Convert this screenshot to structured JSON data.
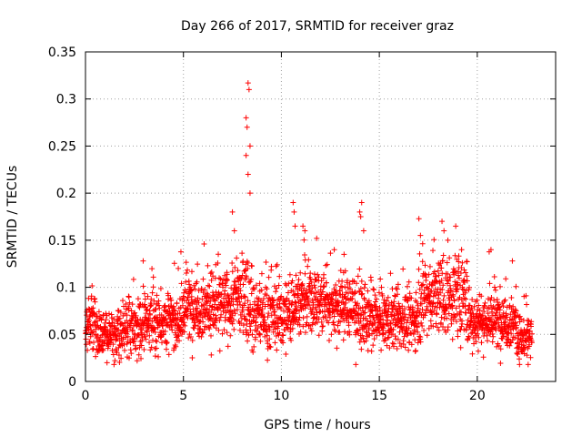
{
  "chart_data": {
    "type": "scatter",
    "title": "Day 266 of 2017, SRMTID for receiver graz",
    "xlabel": "GPS time / hours",
    "ylabel": "SRMTID / TECUs",
    "xlim": [
      0,
      24
    ],
    "ylim": [
      0,
      0.35
    ],
    "x_ticks": [
      0,
      5,
      10,
      15,
      20
    ],
    "x_tick_labels": [
      "0",
      "5",
      "10",
      "15",
      "20"
    ],
    "y_ticks": [
      0,
      0.05,
      0.1,
      0.15,
      0.2,
      0.25,
      0.3,
      0.35
    ],
    "y_tick_labels": [
      "0",
      "0.05",
      "0.1",
      "0.15",
      "0.2",
      "0.25",
      "0.3",
      "0.35"
    ],
    "grid": true,
    "marker": "+",
    "color": "#ff0000",
    "series": [
      {
        "name": "SRMTID",
        "note": "~2800 samples, one every ~30 s from 0 to 22.8 h; values in TECUs",
        "baseline_segments": [
          {
            "x": [
              0.0,
              0.5
            ],
            "mean": 0.065,
            "spread": 0.025
          },
          {
            "x": [
              0.5,
              1.5
            ],
            "mean": 0.05,
            "spread": 0.02
          },
          {
            "x": [
              1.5,
              3.0
            ],
            "mean": 0.055,
            "spread": 0.025
          },
          {
            "x": [
              3.0,
              5.0
            ],
            "mean": 0.065,
            "spread": 0.025
          },
          {
            "x": [
              5.0,
              7.5
            ],
            "mean": 0.08,
            "spread": 0.03
          },
          {
            "x": [
              7.5,
              8.5
            ],
            "mean": 0.09,
            "spread": 0.035
          },
          {
            "x": [
              8.5,
              10.5
            ],
            "mean": 0.07,
            "spread": 0.03
          },
          {
            "x": [
              10.5,
              12.5
            ],
            "mean": 0.085,
            "spread": 0.03
          },
          {
            "x": [
              12.5,
              14.0
            ],
            "mean": 0.08,
            "spread": 0.03
          },
          {
            "x": [
              14.0,
              17.0
            ],
            "mean": 0.065,
            "spread": 0.025
          },
          {
            "x": [
              17.0,
              19.5
            ],
            "mean": 0.09,
            "spread": 0.035
          },
          {
            "x": [
              19.5,
              22.0
            ],
            "mean": 0.065,
            "spread": 0.025
          },
          {
            "x": [
              22.0,
              22.8
            ],
            "mean": 0.045,
            "spread": 0.02
          }
        ],
        "peaks": [
          {
            "x": 8.3,
            "y": 0.317
          },
          {
            "x": 8.35,
            "y": 0.31
          },
          {
            "x": 8.2,
            "y": 0.28
          },
          {
            "x": 8.25,
            "y": 0.27
          },
          {
            "x": 8.4,
            "y": 0.25
          },
          {
            "x": 8.2,
            "y": 0.24
          },
          {
            "x": 8.3,
            "y": 0.22
          },
          {
            "x": 8.4,
            "y": 0.2
          },
          {
            "x": 7.5,
            "y": 0.18
          },
          {
            "x": 7.6,
            "y": 0.16
          },
          {
            "x": 10.6,
            "y": 0.19
          },
          {
            "x": 10.65,
            "y": 0.18
          },
          {
            "x": 10.7,
            "y": 0.165
          },
          {
            "x": 11.1,
            "y": 0.165
          },
          {
            "x": 11.2,
            "y": 0.16
          },
          {
            "x": 14.1,
            "y": 0.19
          },
          {
            "x": 14.0,
            "y": 0.18
          },
          {
            "x": 14.05,
            "y": 0.175
          },
          {
            "x": 14.2,
            "y": 0.16
          },
          {
            "x": 12.7,
            "y": 0.14
          },
          {
            "x": 13.2,
            "y": 0.135
          },
          {
            "x": 18.2,
            "y": 0.17
          },
          {
            "x": 18.3,
            "y": 0.16
          },
          {
            "x": 18.5,
            "y": 0.15
          },
          {
            "x": 18.9,
            "y": 0.165
          },
          {
            "x": 19.2,
            "y": 0.14
          },
          {
            "x": 17.1,
            "y": 0.155
          },
          {
            "x": 20.7,
            "y": 0.14
          },
          {
            "x": 13.8,
            "y": 0.018
          },
          {
            "x": 1.1,
            "y": 0.02
          }
        ]
      }
    ]
  }
}
